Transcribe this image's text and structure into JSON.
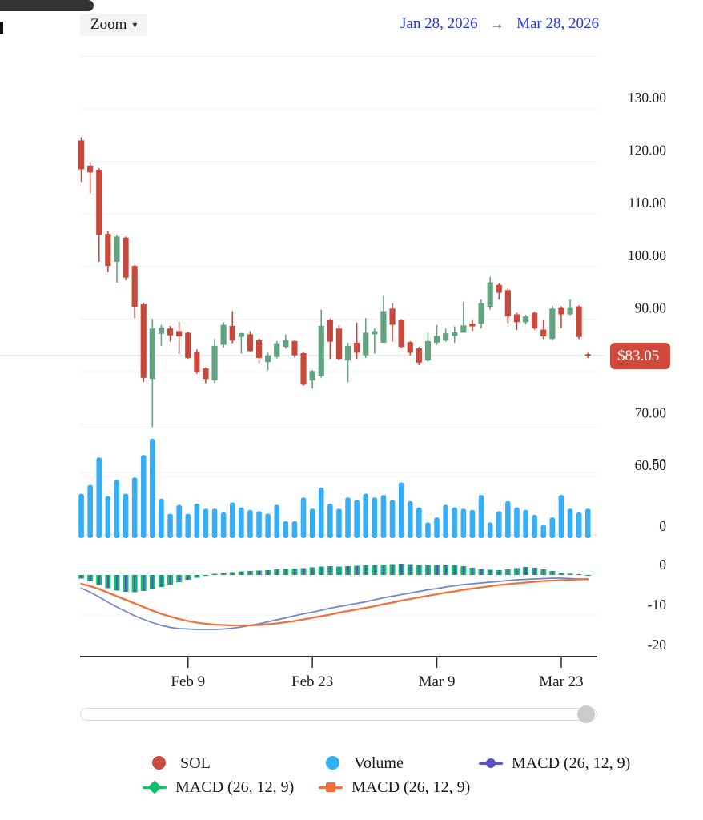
{
  "toolbar": {
    "zoom_label": "Zoom",
    "caret": "▾",
    "date_start": "Jan 28, 2026",
    "date_arrow": "→",
    "date_end": "Mar 28, 2026"
  },
  "current_price": {
    "label": "$83.05",
    "value": 83.05
  },
  "axes": {
    "price_labels": [
      {
        "text": "130.00",
        "value": 130
      },
      {
        "text": "120.00",
        "value": 120
      },
      {
        "text": "110.00",
        "value": 110
      },
      {
        "text": "100.00",
        "value": 100
      },
      {
        "text": "90.00",
        "value": 90
      },
      {
        "text": "80.00",
        "value": 80
      },
      {
        "text": "70.00",
        "value": 70
      },
      {
        "text": "60.00",
        "value": 60
      }
    ],
    "volume_labels": [
      {
        "text": "50",
        "value": 50
      },
      {
        "text": "0",
        "value": 0
      }
    ],
    "macd_labels": [
      {
        "text": "0",
        "value": 0
      },
      {
        "text": "-10",
        "value": -10
      },
      {
        "text": "-20",
        "value": -20
      }
    ],
    "x_ticks": [
      {
        "label": "Feb 9",
        "index": 12
      },
      {
        "label": "Feb 23",
        "index": 26
      },
      {
        "label": "Mar 9",
        "index": 40
      },
      {
        "label": "Mar 23",
        "index": 54
      }
    ]
  },
  "legend": [
    {
      "label": "SOL",
      "marker": "circle",
      "color": "#cb4a3e"
    },
    {
      "label": "Volume",
      "marker": "circle",
      "color": "#35aef5"
    },
    {
      "label": "MACD (26, 12, 9)",
      "marker": "line-circle",
      "color": "#5a52c4"
    },
    {
      "label": "MACD (26, 12, 9)",
      "marker": "line-diamond",
      "color": "#0fc16b"
    },
    {
      "label": "MACD (26, 12, 9)",
      "marker": "line-square",
      "color": "#f4703b"
    }
  ],
  "colors": {
    "candle_up": "#62a480",
    "candle_down": "#c8493c",
    "volume_bar": "#35aef5",
    "macd_line": "#6f86c9",
    "macd_signal": "#f2703a",
    "hist_green": "#0fc16b",
    "hist_purple": "#5a52c4",
    "grid": "#f2f2f2",
    "grid_strong": "#e7e7e7",
    "price_line": "#ececec",
    "axis_line": "#2b2b2b",
    "badge_bg": "#cf4a3a",
    "date_link": "#2336f0"
  },
  "chart_data": {
    "type": "candlestick",
    "symbol": "SOL",
    "title": "SOL price with Volume and MACD (26, 12, 9), Jan 28, 2026 - Mar 28, 2026",
    "price_axis_range": [
      58,
      141
    ],
    "volume_axis_range": [
      0,
      80
    ],
    "macd_axis_range": [
      -22,
      4
    ],
    "grid": true,
    "legend_position": "bottom",
    "dates": [
      "Jan 28",
      "Jan 29",
      "Jan 30",
      "Jan 31",
      "Feb 1",
      "Feb 2",
      "Feb 3",
      "Feb 4",
      "Feb 5",
      "Feb 6",
      "Feb 7",
      "Feb 8",
      "Feb 9",
      "Feb 10",
      "Feb 11",
      "Feb 12",
      "Feb 13",
      "Feb 14",
      "Feb 15",
      "Feb 16",
      "Feb 17",
      "Feb 18",
      "Feb 19",
      "Feb 20",
      "Feb 21",
      "Feb 22",
      "Feb 23",
      "Feb 24",
      "Feb 25",
      "Feb 26",
      "Feb 27",
      "Feb 28",
      "Mar 1",
      "Mar 2",
      "Mar 3",
      "Mar 4",
      "Mar 5",
      "Mar 6",
      "Mar 7",
      "Mar 8",
      "Mar 9",
      "Mar 10",
      "Mar 11",
      "Mar 12",
      "Mar 13",
      "Mar 14",
      "Mar 15",
      "Mar 16",
      "Mar 17",
      "Mar 18",
      "Mar 19",
      "Mar 20",
      "Mar 21",
      "Mar 22",
      "Mar 23",
      "Mar 24",
      "Mar 25",
      "Mar 26"
    ],
    "ohlc": [
      [
        124.0,
        124.6,
        116.1,
        118.5
      ],
      [
        119.2,
        119.9,
        113.9,
        117.9
      ],
      [
        118.4,
        118.7,
        100.9,
        106.0
      ],
      [
        106.2,
        106.7,
        98.9,
        100.1
      ],
      [
        100.9,
        106.0,
        96.9,
        105.7
      ],
      [
        105.5,
        105.7,
        97.4,
        97.9
      ],
      [
        100.1,
        100.3,
        90.2,
        92.3
      ],
      [
        92.8,
        93.1,
        78.0,
        78.8
      ],
      [
        78.6,
        90.0,
        69.4,
        88.2
      ],
      [
        87.2,
        88.9,
        84.9,
        88.4
      ],
      [
        88.2,
        88.7,
        85.7,
        86.9
      ],
      [
        87.7,
        89.5,
        83.4,
        86.7
      ],
      [
        87.4,
        87.6,
        82.4,
        82.6
      ],
      [
        83.7,
        84.2,
        79.6,
        79.9
      ],
      [
        80.6,
        80.8,
        77.8,
        78.6
      ],
      [
        78.3,
        86.2,
        77.8,
        84.9
      ],
      [
        85.1,
        89.4,
        84.6,
        88.9
      ],
      [
        88.7,
        91.5,
        85.4,
        85.9
      ],
      [
        86.6,
        87.4,
        83.4,
        87.3
      ],
      [
        87.1,
        87.7,
        83.8,
        83.9
      ],
      [
        86.0,
        86.3,
        81.6,
        82.6
      ],
      [
        81.8,
        83.6,
        80.3,
        83.1
      ],
      [
        82.8,
        85.8,
        82.5,
        85.4
      ],
      [
        84.7,
        87.1,
        84.4,
        86.0
      ],
      [
        85.8,
        86.0,
        82.7,
        83.1
      ],
      [
        83.5,
        83.7,
        77.3,
        77.5
      ],
      [
        78.3,
        80.3,
        76.8,
        80.1
      ],
      [
        79.1,
        91.8,
        78.8,
        88.7
      ],
      [
        89.8,
        90.1,
        82.4,
        85.7
      ],
      [
        88.2,
        88.8,
        82.1,
        82.4
      ],
      [
        82.1,
        85.5,
        78.0,
        84.9
      ],
      [
        85.5,
        89.3,
        82.4,
        83.6
      ],
      [
        83.1,
        90.2,
        82.6,
        87.4
      ],
      [
        87.1,
        88.2,
        83.4,
        87.7
      ],
      [
        85.5,
        94.4,
        85.5,
        91.5
      ],
      [
        92.0,
        93.0,
        85.7,
        88.9
      ],
      [
        89.8,
        90.0,
        84.5,
        84.7
      ],
      [
        85.6,
        85.8,
        83.1,
        83.6
      ],
      [
        84.4,
        84.7,
        81.2,
        81.7
      ],
      [
        82.1,
        87.4,
        81.9,
        85.8
      ],
      [
        85.5,
        88.9,
        85.1,
        86.8
      ],
      [
        85.9,
        88.2,
        85.7,
        87.3
      ],
      [
        86.8,
        88.6,
        85.5,
        87.5
      ],
      [
        87.4,
        93.3,
        87.4,
        88.8
      ],
      [
        89.1,
        89.8,
        87.7,
        88.6
      ],
      [
        89.1,
        93.7,
        88.2,
        93.0
      ],
      [
        92.3,
        98.0,
        91.8,
        97.0
      ],
      [
        96.5,
        96.8,
        93.7,
        95.0
      ],
      [
        95.5,
        95.8,
        89.2,
        90.5
      ],
      [
        90.9,
        91.2,
        87.9,
        89.4
      ],
      [
        89.4,
        90.8,
        89.0,
        90.5
      ],
      [
        91.2,
        91.4,
        88.0,
        88.2
      ],
      [
        88.0,
        89.8,
        86.2,
        86.7
      ],
      [
        86.2,
        92.5,
        86.0,
        92.0
      ],
      [
        92.1,
        92.4,
        88.3,
        90.9
      ],
      [
        90.9,
        93.7,
        90.7,
        92.1
      ],
      [
        92.4,
        92.6,
        86.2,
        86.6
      ],
      [
        83.3,
        83.6,
        82.6,
        83.05
      ]
    ],
    "volume": [
      33,
      40,
      62,
      31,
      44,
      33,
      46,
      64,
      77,
      29,
      17,
      24,
      17,
      25,
      21,
      21,
      18,
      26,
      22,
      20,
      19,
      17,
      24,
      11,
      11,
      30,
      21,
      38,
      25,
      21,
      30,
      28,
      33,
      30,
      32,
      28,
      42,
      27,
      22,
      10,
      14,
      24,
      22,
      21,
      20,
      32,
      10,
      19,
      27,
      22,
      20,
      16,
      8,
      14,
      32,
      21,
      18,
      21
    ],
    "macd": {
      "params": "26, 12, 9",
      "macd_line": [
        -3.3,
        -4.3,
        -5.5,
        -6.8,
        -8.0,
        -9.1,
        -10.2,
        -11.1,
        -11.9,
        -12.6,
        -13.1,
        -13.4,
        -13.5,
        -13.6,
        -13.6,
        -13.6,
        -13.5,
        -13.3,
        -13.0,
        -12.6,
        -12.2,
        -11.7,
        -11.2,
        -10.7,
        -10.2,
        -9.7,
        -9.3,
        -8.8,
        -8.3,
        -7.9,
        -7.5,
        -7.1,
        -6.7,
        -6.2,
        -5.7,
        -5.3,
        -4.9,
        -4.5,
        -4.1,
        -3.7,
        -3.4,
        -3.0,
        -2.7,
        -2.4,
        -2.2,
        -2.0,
        -1.8,
        -1.6,
        -1.4,
        -1.2,
        -1.1,
        -1.0,
        -0.9,
        -0.8,
        -0.8,
        -0.9,
        -1.0,
        -1.0
      ],
      "signal_line": [
        -2.2,
        -2.8,
        -3.5,
        -4.4,
        -5.3,
        -6.2,
        -7.1,
        -8.0,
        -8.9,
        -9.7,
        -10.4,
        -11.0,
        -11.5,
        -11.9,
        -12.2,
        -12.4,
        -12.5,
        -12.6,
        -12.6,
        -12.6,
        -12.5,
        -12.3,
        -12.1,
        -11.8,
        -11.5,
        -11.1,
        -10.7,
        -10.3,
        -9.9,
        -9.4,
        -9.0,
        -8.6,
        -8.2,
        -7.8,
        -7.3,
        -6.9,
        -6.4,
        -6.0,
        -5.6,
        -5.2,
        -4.8,
        -4.4,
        -4.1,
        -3.7,
        -3.4,
        -3.1,
        -2.8,
        -2.5,
        -2.3,
        -2.1,
        -1.9,
        -1.7,
        -1.5,
        -1.4,
        -1.3,
        -1.2,
        -1.1,
        -1.1
      ],
      "histogram": [
        -0.9,
        -1.6,
        -2.5,
        -3.3,
        -3.9,
        -4.2,
        -4.3,
        -4.0,
        -3.6,
        -3.0,
        -2.4,
        -1.8,
        -1.2,
        -0.7,
        -0.2,
        0.3,
        0.5,
        0.7,
        0.9,
        1.0,
        1.1,
        1.2,
        1.4,
        1.5,
        1.6,
        1.7,
        1.9,
        2.1,
        2.2,
        2.1,
        2.2,
        2.3,
        2.4,
        2.5,
        2.6,
        2.7,
        2.8,
        2.7,
        2.5,
        2.4,
        2.5,
        2.6,
        2.5,
        2.2,
        1.8,
        1.5,
        1.3,
        1.2,
        1.4,
        1.7,
        2.0,
        1.8,
        1.4,
        1.0,
        0.6,
        0.3,
        0.1,
        -0.1
      ]
    }
  }
}
